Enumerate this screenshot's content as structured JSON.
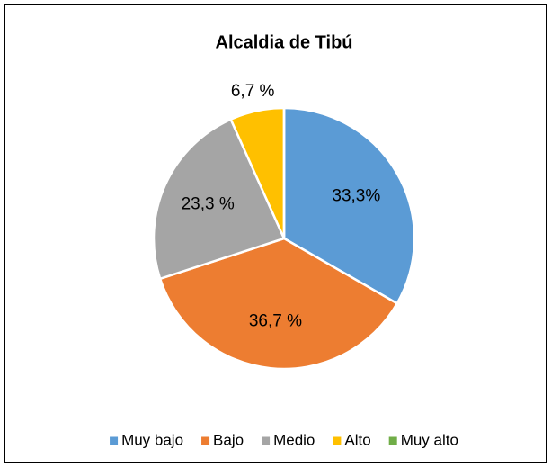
{
  "chart_data": {
    "type": "pie",
    "title": "Alcaldia de Tibú",
    "categories": [
      "Muy bajo",
      "Bajo",
      "Medio",
      "Alto",
      "Muy alto"
    ],
    "values": [
      33.3,
      36.7,
      23.3,
      6.7,
      0
    ],
    "value_labels": [
      "33,3%",
      "36,7 %",
      "23,3 %",
      "6,7 %",
      null
    ],
    "colors": [
      "#5b9bd5",
      "#ed7d31",
      "#a5a5a5",
      "#ffc000",
      "#70ad47"
    ],
    "legend": "bottom"
  }
}
